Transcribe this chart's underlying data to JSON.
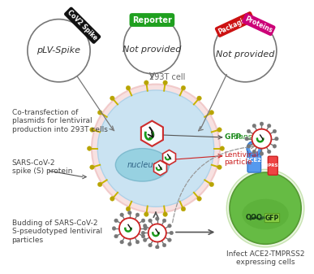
{
  "plasmid1_label": "pLV-Spike",
  "plasmid1_tag": "CoV2 Spike",
  "plasmid1_tag_color": "#111111",
  "plasmid2_label": "Not provided",
  "plasmid2_tag": "Reporter",
  "plasmid2_tag_color": "#1fa01f",
  "plasmid3_label": "Not provided",
  "plasmid3_tag1": "Packaging",
  "plasmid3_tag1_color": "#cc1111",
  "plasmid3_tag2": "Proteins",
  "plasmid3_tag2_color": "#cc0077",
  "cell_fill": "#c5e4f5",
  "cell_glow": "#f5c8c8",
  "nucleus_fill": "#92cfe0",
  "nucleus_edge": "#7ab8cc",
  "spike_color": "#c8b400",
  "spike_head_color": "#b8a400",
  "lv_hex_color": "#cc2222",
  "lv_rna_color": "#222222",
  "lv_gfp_color": "#1a9a1a",
  "target_cell_fill": "#66bb44",
  "target_cell_edge": "#559933",
  "target_inner_fill": "#55aa33",
  "ace2_fill": "#5599ee",
  "ace2_edge": "#3377cc",
  "tmprss2_fill": "#ee4444",
  "tmprss2_edge": "#cc2222",
  "arrow_color": "#555555",
  "text_color": "#444444",
  "gfp_label_color": "#1a8a1a",
  "lv_label_color": "#cc2222",
  "gray_label_color": "#666666",
  "text_cotransfection": "Co-transfection of\nplasmids for lentiviral\nproduction into 293T cells",
  "text_sars": "SARS-CoV-2\nspike (S) protein",
  "text_budding": "Budding of SARS-CoV-2\nS-pseudotyped lentiviral\nparticles",
  "text_infect": "Infect ACE2-TMPRSS2\nexpressing cells",
  "text_293t": "293T cell",
  "text_ace2": "ACE2",
  "text_tmprss2": "TMPRSS2",
  "bg_color": "#ffffff"
}
